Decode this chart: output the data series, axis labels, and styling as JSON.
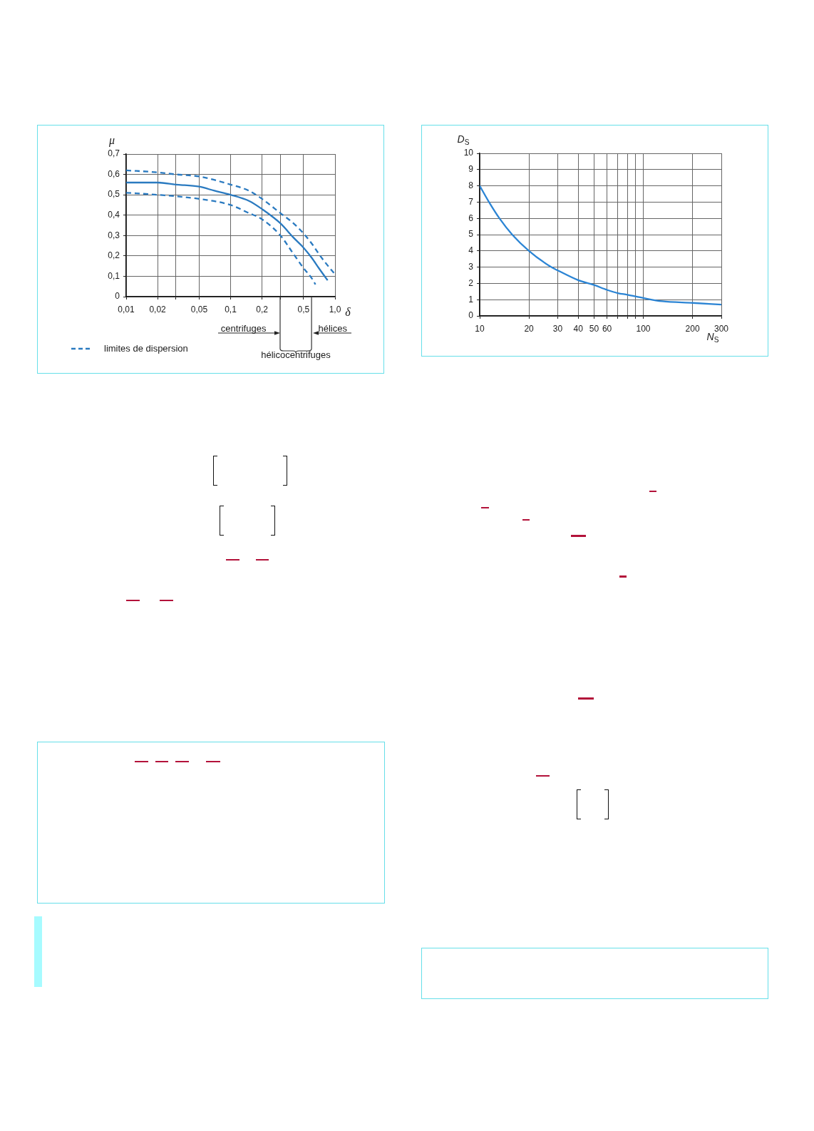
{
  "chart_data": [
    {
      "type": "line",
      "xlabel": "δ",
      "ylabel": "μ",
      "log": "x",
      "xlim": [
        0.01,
        1
      ],
      "ylim": [
        0,
        0.7
      ],
      "xticks": [
        {
          "value": 0.01,
          "label": "0,01"
        },
        {
          "value": 0.02,
          "label": "0,02"
        },
        {
          "value": 0.03,
          "label": null
        },
        {
          "value": 0.05,
          "label": "0,05"
        },
        {
          "value": 0.1,
          "label": "0,1"
        },
        {
          "value": 0.2,
          "label": "0,2"
        },
        {
          "value": 0.3,
          "label": null
        },
        {
          "value": 0.5,
          "label": "0,5"
        },
        {
          "value": 1,
          "label": "1,0"
        }
      ],
      "yticks": [
        0,
        {
          "value": 0.1,
          "label": "0,1"
        },
        {
          "value": 0.2,
          "label": "0,2"
        },
        {
          "value": 0.3,
          "label": "0,3"
        },
        {
          "value": 0.4,
          "label": "0,4"
        },
        {
          "value": 0.5,
          "label": "0,5"
        },
        {
          "value": 0.6,
          "label": "0,6"
        },
        {
          "value": 0.7,
          "label": "0,7"
        }
      ],
      "grid": true,
      "legend": "bottom left",
      "marker": "none",
      "series": [
        {
          "color": "#2a7ac0",
          "line_style": "solid",
          "x": [
            0.01,
            0.02,
            0.03,
            0.05,
            0.07,
            0.1,
            0.15,
            0.2,
            0.3,
            0.4,
            0.5,
            0.6,
            0.7,
            0.85
          ],
          "values": [
            0.56,
            0.56,
            0.55,
            0.54,
            0.52,
            0.5,
            0.47,
            0.43,
            0.36,
            0.29,
            0.24,
            0.19,
            0.14,
            0.08
          ]
        },
        {
          "name": "limites de dispersion",
          "color": "#2a7ac0",
          "line_style": "dashed",
          "x": [
            0.01,
            0.02,
            0.03,
            0.05,
            0.1,
            0.15,
            0.2,
            0.3,
            0.4,
            0.5,
            0.6,
            0.7,
            0.8,
            1
          ],
          "values": [
            0.62,
            0.61,
            0.6,
            0.59,
            0.55,
            0.52,
            0.48,
            0.41,
            0.36,
            0.31,
            0.26,
            0.21,
            0.17,
            0.11
          ]
        },
        {
          "color": "#2a7ac0",
          "line_style": "dashed",
          "x": [
            0.01,
            0.02,
            0.05,
            0.1,
            0.15,
            0.2,
            0.3,
            0.4,
            0.5,
            0.6,
            0.65
          ],
          "values": [
            0.51,
            0.5,
            0.48,
            0.45,
            0.41,
            0.38,
            0.3,
            0.21,
            0.14,
            0.09,
            0.06
          ]
        }
      ],
      "annotations": [
        "centrifuges",
        "hélices",
        "hélicocentrifuges"
      ]
    },
    {
      "type": "line",
      "xlabel": "N$_{S}$",
      "ylabel": "D$_{S}$",
      "log": "x",
      "xlim": [
        10,
        300
      ],
      "ylim": [
        0,
        10
      ],
      "xticks": [
        10,
        20,
        30,
        40,
        50,
        60,
        {
          "value": 70,
          "label": null
        },
        {
          "value": 80,
          "label": null
        },
        {
          "value": 90,
          "label": null
        },
        100,
        200,
        300
      ],
      "yticks": [
        0,
        1,
        2,
        3,
        4,
        5,
        6,
        7,
        8,
        9,
        10
      ],
      "grid": true,
      "marker": "none",
      "x": [
        10,
        11.4,
        13.2,
        15.8,
        20,
        27.4,
        30,
        40,
        50,
        60,
        70,
        80,
        100,
        130,
        200,
        300
      ],
      "series": [
        {
          "color": "#2b84d4",
          "line_style": "solid",
          "values": [
            8,
            7,
            6,
            5,
            4,
            3,
            2.8,
            2.2,
            1.9,
            1.6,
            1.4,
            1.3,
            1.1,
            0.9,
            0.8,
            0.7
          ]
        }
      ]
    }
  ]
}
